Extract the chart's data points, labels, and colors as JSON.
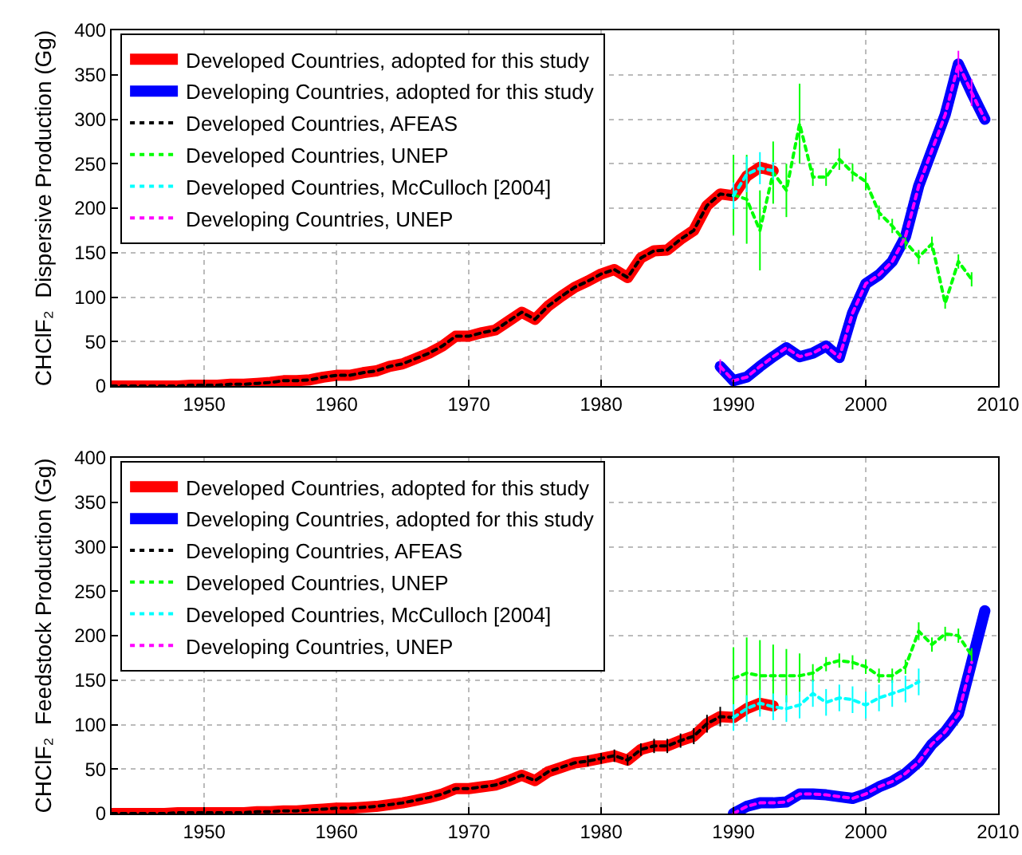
{
  "chart_data": [
    {
      "type": "line",
      "ylabel": "CHClF₂  Dispersive Production (Gg)",
      "xlim": [
        1943,
        2010
      ],
      "xticks": [
        1950,
        1960,
        1970,
        1980,
        1990,
        2000,
        2010
      ],
      "ylim": [
        0,
        400
      ],
      "yticks": [
        0,
        50,
        100,
        150,
        200,
        250,
        300,
        350,
        400
      ],
      "grid": true,
      "legend": "top left",
      "series": [
        {
          "name": "Developed Countries, adopted for this study",
          "color": "#ff0000",
          "line_style": "solid",
          "x": [
            1943,
            1944,
            1945,
            1946,
            1947,
            1948,
            1949,
            1950,
            1951,
            1952,
            1953,
            1954,
            1955,
            1956,
            1957,
            1958,
            1959,
            1960,
            1961,
            1962,
            1963,
            1964,
            1965,
            1966,
            1967,
            1968,
            1969,
            1970,
            1971,
            1972,
            1973,
            1974,
            1975,
            1976,
            1977,
            1978,
            1979,
            1980,
            1981,
            1982,
            1983,
            1984,
            1985,
            1986,
            1987,
            1988,
            1989,
            1990,
            1991,
            1992,
            1993
          ],
          "values": [
            0,
            0,
            0,
            0,
            0,
            0,
            1,
            1,
            1,
            2,
            2,
            3,
            4,
            6,
            6,
            7,
            10,
            12,
            12,
            15,
            17,
            22,
            25,
            31,
            37,
            45,
            56,
            56,
            60,
            63,
            73,
            83,
            75,
            90,
            101,
            111,
            118,
            126,
            131,
            122,
            144,
            152,
            153,
            165,
            175,
            203,
            216,
            214,
            236,
            246,
            242
          ]
        },
        {
          "name": "Developing Countries, adopted for this study",
          "color": "#0000ff",
          "line_style": "solid",
          "x": [
            1989,
            1990,
            1991,
            1992,
            1993,
            1994,
            1995,
            1996,
            1997,
            1998,
            1999,
            2000,
            2001,
            2002,
            2003,
            2004,
            2005,
            2006,
            2007,
            2008,
            2009
          ],
          "values": [
            22,
            6,
            10,
            22,
            33,
            43,
            33,
            37,
            45,
            32,
            82,
            115,
            125,
            140,
            168,
            225,
            265,
            305,
            362,
            330,
            300
          ]
        },
        {
          "name": "Developed Countries, AFEAS",
          "color": "#000000",
          "line_style": "dotted",
          "x": [
            1943,
            1944,
            1945,
            1946,
            1947,
            1948,
            1949,
            1950,
            1951,
            1952,
            1953,
            1954,
            1955,
            1956,
            1957,
            1958,
            1959,
            1960,
            1961,
            1962,
            1963,
            1964,
            1965,
            1966,
            1967,
            1968,
            1969,
            1970,
            1971,
            1972,
            1973,
            1974,
            1975,
            1976,
            1977,
            1978,
            1979,
            1980,
            1981,
            1982,
            1983,
            1984,
            1985,
            1986,
            1987,
            1988,
            1989,
            1990
          ],
          "values": [
            0,
            0,
            0,
            0,
            0,
            0,
            1,
            1,
            1,
            2,
            2,
            3,
            4,
            6,
            6,
            7,
            10,
            12,
            12,
            15,
            17,
            22,
            25,
            31,
            37,
            45,
            56,
            56,
            60,
            63,
            73,
            83,
            75,
            90,
            101,
            111,
            118,
            126,
            131,
            122,
            144,
            152,
            153,
            165,
            175,
            203,
            216,
            214
          ]
        },
        {
          "name": "Developed Countries, UNEP",
          "color": "#00ff00",
          "line_style": "dotted",
          "x": [
            1990,
            1991,
            1992,
            1993,
            1994,
            1995,
            1996,
            1997,
            1998,
            1999,
            2000,
            2001,
            2002,
            2003,
            2004,
            2005,
            2006,
            2007,
            2008
          ],
          "values": [
            215,
            210,
            175,
            240,
            220,
            295,
            235,
            235,
            255,
            240,
            230,
            195,
            180,
            162,
            145,
            160,
            93,
            140,
            120
          ],
          "errors": [
            45,
            50,
            45,
            35,
            30,
            45,
            10,
            10,
            12,
            10,
            10,
            8,
            8,
            8,
            8,
            8,
            6,
            8,
            8
          ]
        },
        {
          "name": "Developed Countries, McCulloch [2004]",
          "color": "#00ffff",
          "line_style": "dotted",
          "x": [
            1990,
            1991,
            1992,
            1993
          ],
          "values": [
            214,
            238,
            245,
            242
          ],
          "errors": [
            15,
            20,
            18,
            10
          ]
        },
        {
          "name": "Developing Countries, UNEP",
          "color": "#ff00ff",
          "line_style": "dotted",
          "x": [
            1989,
            1990,
            1991,
            1992,
            1993,
            1994,
            1995,
            1996,
            1997,
            1998,
            1999,
            2000,
            2001,
            2002,
            2003,
            2004,
            2005,
            2006,
            2007,
            2008,
            2009
          ],
          "values": [
            22,
            6,
            10,
            22,
            33,
            43,
            33,
            37,
            45,
            32,
            82,
            115,
            125,
            140,
            168,
            225,
            265,
            305,
            362,
            330,
            300
          ],
          "errors": [
            8,
            null,
            null,
            null,
            null,
            null,
            null,
            null,
            null,
            null,
            null,
            null,
            null,
            null,
            null,
            null,
            null,
            null,
            15,
            15,
            null
          ]
        }
      ]
    },
    {
      "type": "line",
      "ylabel": "CHClF₂  Feedstock Production (Gg)",
      "xlim": [
        1943,
        2010
      ],
      "xticks": [
        1950,
        1960,
        1970,
        1980,
        1990,
        2000,
        2010
      ],
      "ylim": [
        0,
        400
      ],
      "yticks": [
        0,
        50,
        100,
        150,
        200,
        250,
        300,
        350,
        400
      ],
      "grid": true,
      "legend": "top left",
      "series": [
        {
          "name": "Developed Countries, adopted for this study",
          "color": "#ff0000",
          "line_style": "solid",
          "x": [
            1943,
            1944,
            1945,
            1946,
            1947,
            1948,
            1949,
            1950,
            1951,
            1952,
            1953,
            1954,
            1955,
            1956,
            1957,
            1958,
            1959,
            1960,
            1961,
            1962,
            1963,
            1964,
            1965,
            1966,
            1967,
            1968,
            1969,
            1970,
            1971,
            1972,
            1973,
            1974,
            1975,
            1976,
            1977,
            1978,
            1979,
            1980,
            1981,
            1982,
            1983,
            1984,
            1985,
            1986,
            1987,
            1988,
            1989,
            1990,
            1991,
            1992,
            1993
          ],
          "values": [
            0,
            0,
            0,
            0,
            0,
            1,
            1,
            1,
            1,
            1,
            1,
            2,
            2,
            3,
            3,
            4,
            5,
            6,
            6,
            7,
            8,
            10,
            12,
            15,
            18,
            22,
            28,
            28,
            30,
            32,
            37,
            43,
            37,
            47,
            52,
            57,
            59,
            62,
            65,
            60,
            72,
            76,
            76,
            82,
            87,
            101,
            109,
            108,
            118,
            124,
            121
          ]
        },
        {
          "name": "Developing Countries, adopted for this study",
          "color": "#0000ff",
          "line_style": "solid",
          "x": [
            1990,
            1991,
            1992,
            1993,
            1994,
            1995,
            1996,
            1997,
            1998,
            1999,
            2000,
            2001,
            2002,
            2003,
            2004,
            2005,
            2006,
            2007,
            2008,
            2009
          ],
          "values": [
            0,
            8,
            12,
            12,
            13,
            22,
            22,
            21,
            19,
            17,
            22,
            30,
            36,
            45,
            58,
            78,
            92,
            112,
            170,
            228
          ]
        },
        {
          "name": "Developing Countries, AFEAS",
          "color": "#000000",
          "line_style": "dotted",
          "x": [
            1943,
            1944,
            1945,
            1946,
            1947,
            1948,
            1949,
            1950,
            1951,
            1952,
            1953,
            1954,
            1955,
            1956,
            1957,
            1958,
            1959,
            1960,
            1961,
            1962,
            1963,
            1964,
            1965,
            1966,
            1967,
            1968,
            1969,
            1970,
            1971,
            1972,
            1973,
            1974,
            1975,
            1976,
            1977,
            1978,
            1979,
            1980,
            1981,
            1982,
            1983,
            1984,
            1985,
            1986,
            1987,
            1988,
            1989,
            1990
          ],
          "values": [
            0,
            0,
            0,
            0,
            0,
            1,
            1,
            1,
            1,
            1,
            1,
            2,
            2,
            3,
            3,
            4,
            5,
            6,
            6,
            7,
            8,
            10,
            12,
            15,
            18,
            22,
            28,
            28,
            30,
            32,
            37,
            43,
            37,
            47,
            52,
            57,
            59,
            62,
            65,
            60,
            72,
            76,
            76,
            82,
            87,
            101,
            109,
            108
          ],
          "errors": [
            null,
            null,
            null,
            null,
            null,
            null,
            null,
            null,
            null,
            null,
            null,
            null,
            null,
            null,
            null,
            null,
            null,
            null,
            null,
            null,
            null,
            null,
            null,
            null,
            null,
            null,
            null,
            null,
            null,
            null,
            null,
            null,
            null,
            null,
            null,
            null,
            6,
            6,
            7,
            6,
            7,
            8,
            8,
            8,
            9,
            10,
            11,
            null
          ]
        },
        {
          "name": "Developed Countries, UNEP",
          "color": "#00ff00",
          "line_style": "dotted",
          "x": [
            1990,
            1991,
            1992,
            1993,
            1994,
            1995,
            1996,
            1997,
            1998,
            1999,
            2000,
            2001,
            2002,
            2003,
            2004,
            2005,
            2006,
            2007,
            2008
          ],
          "values": [
            152,
            158,
            155,
            155,
            155,
            155,
            158,
            168,
            172,
            170,
            165,
            155,
            155,
            165,
            205,
            190,
            202,
            200,
            178
          ],
          "errors": [
            35,
            40,
            40,
            35,
            30,
            25,
            10,
            8,
            8,
            8,
            8,
            8,
            8,
            8,
            10,
            8,
            8,
            8,
            8
          ]
        },
        {
          "name": "Developed Countries, McCulloch [2004]",
          "color": "#00ffff",
          "line_style": "dotted",
          "x": [
            1990,
            1991,
            1992,
            1993,
            1994,
            1995,
            1996,
            1997,
            1998,
            1999,
            2000,
            2001,
            2002,
            2003,
            2004
          ],
          "values": [
            108,
            118,
            124,
            120,
            118,
            122,
            135,
            125,
            130,
            128,
            122,
            130,
            135,
            140,
            148
          ],
          "errors": [
            15,
            15,
            15,
            15,
            15,
            15,
            15,
            15,
            15,
            15,
            15,
            15,
            15,
            15,
            15
          ]
        },
        {
          "name": "Developing Countries, UNEP",
          "color": "#ff00ff",
          "line_style": "dotted",
          "x": [
            1990,
            1991,
            1992,
            1993,
            1994,
            1995,
            1996,
            1997,
            1998,
            1999,
            2000,
            2001,
            2002,
            2003,
            2004,
            2005,
            2006,
            2007,
            2008
          ],
          "values": [
            0,
            8,
            12,
            12,
            13,
            22,
            22,
            21,
            19,
            17,
            22,
            30,
            36,
            45,
            58,
            78,
            92,
            112,
            170
          ]
        }
      ]
    }
  ]
}
